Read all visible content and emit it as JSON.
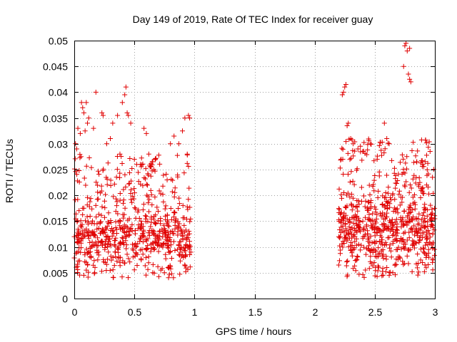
{
  "chart_data": {
    "type": "scatter",
    "title": "Day 149 of 2019, Rate Of TEC Index for receiver guay",
    "xlabel": "GPS time / hours",
    "ylabel": "ROTI / TECUs",
    "xlim": [
      0,
      3
    ],
    "ylim": [
      0,
      0.05
    ],
    "grid": true,
    "marker": "+",
    "x_ticks": [
      0,
      0.5,
      1,
      1.5,
      2,
      2.5,
      3
    ],
    "x_tick_labels": [
      "0",
      "0.5",
      "1",
      "1.5",
      "2",
      "2.5",
      "3"
    ],
    "y_ticks": [
      0,
      0.005,
      0.01,
      0.015,
      0.02,
      0.025,
      0.03,
      0.035,
      0.04,
      0.045,
      0.05
    ],
    "y_tick_labels": [
      "0",
      "0.005",
      "0.01",
      "0.015",
      "0.02",
      "0.025",
      "0.03",
      "0.035",
      "0.04",
      "0.045",
      "0.05"
    ],
    "series": [
      {
        "name": "ROTI",
        "color": "#e00000",
        "clusters": [
          {
            "x_range": [
              0.0,
              0.97
            ],
            "y_core": [
              0.007,
              0.017
            ],
            "count": 700
          },
          {
            "x_range": [
              2.2,
              3.0
            ],
            "y_core": [
              0.007,
              0.02
            ],
            "count": 700
          }
        ],
        "points": [
          [
            0.0,
            0.012
          ],
          [
            0.01,
            0.03
          ],
          [
            0.02,
            0.029
          ],
          [
            0.03,
            0.033
          ],
          [
            0.05,
            0.032
          ],
          [
            0.06,
            0.038
          ],
          [
            0.07,
            0.037
          ],
          [
            0.08,
            0.036
          ],
          [
            0.1,
            0.038
          ],
          [
            0.12,
            0.035
          ],
          [
            0.11,
            0.034
          ],
          [
            0.09,
            0.0325
          ],
          [
            0.18,
            0.04
          ],
          [
            0.16,
            0.033
          ],
          [
            0.23,
            0.036
          ],
          [
            0.24,
            0.0355
          ],
          [
            0.27,
            0.03
          ],
          [
            0.3,
            0.031
          ],
          [
            0.32,
            0.034
          ],
          [
            0.36,
            0.0355
          ],
          [
            0.38,
            0.028
          ],
          [
            0.4,
            0.038
          ],
          [
            0.42,
            0.0395
          ],
          [
            0.43,
            0.041
          ],
          [
            0.44,
            0.036
          ],
          [
            0.45,
            0.0355
          ],
          [
            0.47,
            0.034
          ],
          [
            0.5,
            0.027
          ],
          [
            0.55,
            0.026
          ],
          [
            0.58,
            0.033
          ],
          [
            0.6,
            0.032
          ],
          [
            0.62,
            0.028
          ],
          [
            0.8,
            0.03
          ],
          [
            0.83,
            0.0315
          ],
          [
            0.87,
            0.03
          ],
          [
            0.9,
            0.0325
          ],
          [
            0.92,
            0.035
          ],
          [
            0.95,
            0.0355
          ],
          [
            0.96,
            0.035
          ],
          [
            0.94,
            0.028
          ],
          [
            0.08,
            0.0045
          ],
          [
            0.1,
            0.0055
          ],
          [
            0.17,
            0.005
          ],
          [
            0.38,
            0.007
          ],
          [
            0.72,
            0.0055
          ],
          [
            0.75,
            0.005
          ],
          [
            0.78,
            0.006
          ],
          [
            0.97,
            0.009
          ],
          [
            0.96,
            0.0085
          ],
          [
            2.23,
            0.0395
          ],
          [
            2.24,
            0.04
          ],
          [
            2.25,
            0.041
          ],
          [
            2.26,
            0.0415
          ],
          [
            2.28,
            0.034
          ],
          [
            2.27,
            0.0335
          ],
          [
            2.3,
            0.031
          ],
          [
            2.32,
            0.03
          ],
          [
            2.22,
            0.027
          ],
          [
            2.36,
            0.029
          ],
          [
            2.4,
            0.0285
          ],
          [
            2.52,
            0.027
          ],
          [
            2.6,
            0.031
          ],
          [
            2.62,
            0.03
          ],
          [
            2.58,
            0.034
          ],
          [
            2.75,
            0.049
          ],
          [
            2.76,
            0.0495
          ],
          [
            2.77,
            0.048
          ],
          [
            2.79,
            0.0485
          ],
          [
            2.74,
            0.045
          ],
          [
            2.79,
            0.0425
          ],
          [
            2.8,
            0.042
          ],
          [
            2.78,
            0.0435
          ],
          [
            2.85,
            0.0265
          ],
          [
            2.9,
            0.026
          ],
          [
            2.98,
            0.0235
          ],
          [
            2.2,
            0.0065
          ],
          [
            2.62,
            0.0045
          ],
          [
            2.65,
            0.005
          ],
          [
            2.6,
            0.006
          ],
          [
            2.98,
            0.007
          ],
          [
            2.95,
            0.008
          ]
        ]
      }
    ]
  }
}
